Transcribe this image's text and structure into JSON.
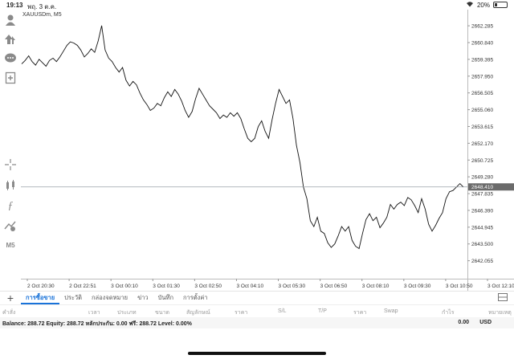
{
  "status_bar": {
    "time": "19:13",
    "date": "พฤ. 3 ต.ค.",
    "battery": "20%",
    "battery_level": 0.2
  },
  "chart": {
    "symbol": "XAUUSDm, M5"
  },
  "left_tools": [
    {
      "name": "account-icon"
    },
    {
      "name": "trade-icon"
    },
    {
      "name": "chat-icon"
    },
    {
      "name": "new-order-icon"
    },
    {
      "name": "crosshair-icon"
    },
    {
      "name": "chart-type-icon"
    },
    {
      "name": "indicator-icon"
    },
    {
      "name": "objects-icon"
    },
    {
      "name": "timeframe-icon",
      "label": "M5"
    }
  ],
  "tabs": [
    "การซื้อขาย",
    "ประวัติ",
    "กล่องจดหมาย",
    "ข่าว",
    "บันทึก",
    "การตั้งค่า"
  ],
  "columns": [
    "คำสั่ง",
    "เวลา",
    "ประเภท",
    "ขนาด",
    "สัญลักษณ์",
    "ราคา",
    "S/L",
    "T/P",
    "ราคา",
    "Swap",
    "กำไร",
    "หมายเหตุ"
  ],
  "balance": {
    "text": "Balance: 288.72 Equity: 288.72 หลักประกัน: 0.00 ฟรี: 288.72 Level: 0.00%",
    "profit": "0.00",
    "currency": "USD"
  },
  "chart_data": {
    "type": "line",
    "ylim": [
      2641.2,
      2663.4
    ],
    "y_ticks": [
      "2662.285",
      "2660.840",
      "2659.395",
      "2657.950",
      "2656.505",
      "2655.060",
      "2653.615",
      "2652.170",
      "2650.725",
      "2649.280",
      "2647.835",
      "2646.390",
      "2644.945",
      "2643.500",
      "2642.055"
    ],
    "current_price": "2648.410",
    "current_value": 2648.41,
    "x_ticks": [
      "2 Oct 20:30",
      "2 Oct 22:51",
      "3 Oct 00:10",
      "3 Oct 01:30",
      "3 Oct 02:50",
      "3 Oct 04:10",
      "3 Oct 05:30",
      "3 Oct 06:50",
      "3 Oct 08:10",
      "3 Oct 09:30",
      "3 Oct 10:50",
      "3 Oct 12:10"
    ],
    "values": [
      2659.0,
      2659.3,
      2659.7,
      2659.2,
      2658.9,
      2659.4,
      2659.1,
      2658.8,
      2659.3,
      2659.5,
      2659.2,
      2659.6,
      2660.1,
      2660.6,
      2660.9,
      2660.8,
      2660.6,
      2660.2,
      2659.6,
      2659.9,
      2660.3,
      2660.0,
      2661.0,
      2662.3,
      2660.2,
      2659.5,
      2659.2,
      2658.7,
      2658.3,
      2658.7,
      2657.6,
      2657.1,
      2657.5,
      2657.2,
      2656.5,
      2655.9,
      2655.5,
      2655.0,
      2655.2,
      2655.6,
      2655.4,
      2656.1,
      2656.6,
      2656.2,
      2656.8,
      2656.4,
      2655.8,
      2655.0,
      2654.4,
      2654.9,
      2656.0,
      2656.9,
      2656.4,
      2655.9,
      2655.4,
      2655.1,
      2654.8,
      2654.3,
      2654.6,
      2654.4,
      2654.8,
      2654.5,
      2654.8,
      2654.3,
      2653.4,
      2652.6,
      2652.3,
      2652.6,
      2653.6,
      2654.1,
      2653.2,
      2652.6,
      2654.2,
      2655.6,
      2656.8,
      2656.2,
      2655.6,
      2655.9,
      2654.3,
      2652.0,
      2650.5,
      2648.4,
      2647.4,
      2645.5,
      2645.0,
      2645.8,
      2644.6,
      2644.4,
      2643.6,
      2643.2,
      2643.5,
      2644.2,
      2645.0,
      2644.6,
      2645.0,
      2643.8,
      2643.3,
      2643.1,
      2644.4,
      2645.6,
      2646.1,
      2645.5,
      2645.8,
      2644.9,
      2645.3,
      2645.8,
      2646.9,
      2646.5,
      2646.9,
      2647.1,
      2646.8,
      2647.5,
      2647.3,
      2646.8,
      2646.2,
      2647.4,
      2646.5,
      2645.2,
      2644.6,
      2645.1,
      2645.7,
      2646.2,
      2647.4,
      2648.0,
      2648.1,
      2648.4,
      2648.7,
      2648.4
    ]
  }
}
